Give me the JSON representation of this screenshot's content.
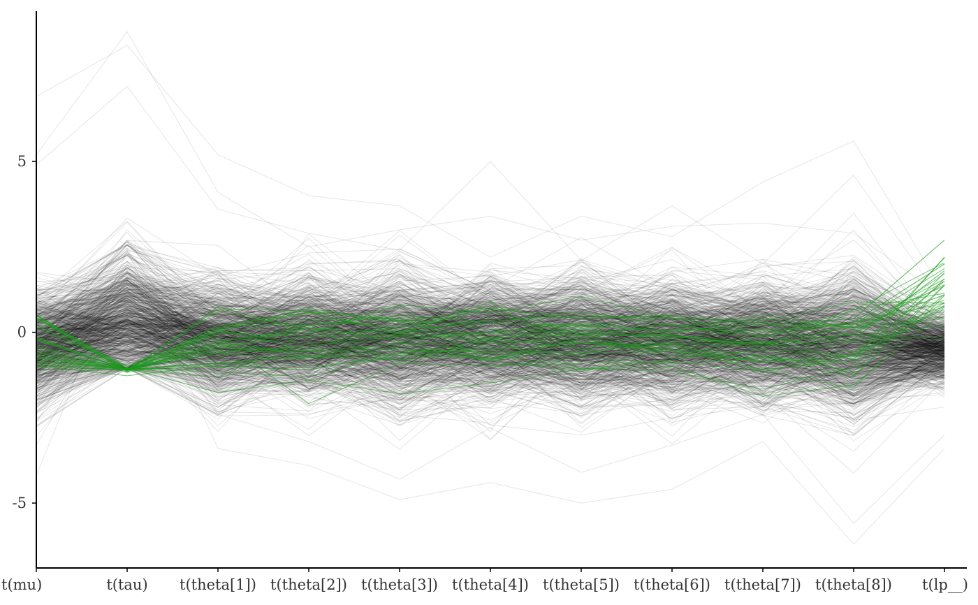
{
  "chart_data": {
    "type": "line",
    "plot_kind": "parallel-coordinates",
    "title": "",
    "xlabel": "",
    "ylabel": "",
    "categories": [
      "t(mu)",
      "t(tau)",
      "t(theta[1])",
      "t(theta[2])",
      "t(theta[3])",
      "t(theta[4])",
      "t(theta[5])",
      "t(theta[6])",
      "t(theta[7])",
      "t(theta[8])",
      "t(lp__)"
    ],
    "y_ticks": [
      {
        "value": 5,
        "label": "5"
      },
      {
        "value": 0,
        "label": "0"
      },
      {
        "value": -5,
        "label": "-5"
      }
    ],
    "ylim": [
      -6.9,
      9.4
    ],
    "grid": false,
    "legend": "none",
    "line_opacity_normal": 0.1,
    "colors": {
      "normal": "#000000",
      "divergent": "#1a9e1a"
    },
    "series_normal_example": [
      {
        "values": [
          5.2,
          8.8,
          4.1,
          2.5,
          3.0,
          3.4,
          2.7,
          3.1,
          3.2,
          2.9,
          1.0
        ]
      },
      {
        "values": [
          6.9,
          8.4,
          5.2,
          4.0,
          3.7,
          2.2,
          3.4,
          2.8,
          4.4,
          5.6,
          1.1
        ]
      },
      {
        "values": [
          4.9,
          7.2,
          3.6,
          2.9,
          2.4,
          5.0,
          2.1,
          3.7,
          2.0,
          4.6,
          0.8
        ]
      },
      {
        "values": [
          -4.2,
          2.4,
          -3.4,
          -3.9,
          -4.9,
          -4.4,
          -5.0,
          -4.6,
          -3.2,
          -6.2,
          -3.4
        ]
      },
      {
        "values": [
          -3.3,
          1.2,
          -2.4,
          -3.2,
          -4.3,
          -2.8,
          -4.1,
          -3.3,
          -2.4,
          -5.6,
          -3.0
        ]
      },
      {
        "values": [
          0.1,
          0.3,
          0.2,
          0.4,
          -0.1,
          0.2,
          0.0,
          -0.2,
          0.1,
          -0.3,
          -0.4
        ]
      },
      {
        "values": [
          -0.6,
          0.1,
          -0.4,
          -0.2,
          0.3,
          -0.1,
          -0.3,
          0.2,
          -0.5,
          0.1,
          -0.8
        ]
      },
      {
        "values": [
          1.2,
          2.3,
          1.4,
          1.0,
          0.8,
          1.5,
          0.9,
          1.2,
          1.8,
          1.1,
          0.2
        ]
      },
      {
        "values": [
          -1.5,
          -0.5,
          -1.8,
          -1.2,
          -2.1,
          -1.4,
          -1.9,
          -1.6,
          -1.2,
          -2.4,
          -1.3
        ]
      },
      {
        "values": [
          0.5,
          1.4,
          0.8,
          0.6,
          0.3,
          0.9,
          0.4,
          0.5,
          0.7,
          0.4,
          -0.6
        ]
      }
    ],
    "series_divergent_example": [
      {
        "values": [
          -0.4,
          -1.1,
          -0.9,
          -0.7,
          -0.3,
          -0.8,
          -0.2,
          -0.5,
          -1.1,
          -0.8,
          2.2
        ]
      },
      {
        "values": [
          0.4,
          -1.0,
          -0.3,
          0.2,
          0.5,
          0.3,
          0.6,
          0.2,
          -0.1,
          0.3,
          2.0
        ]
      },
      {
        "values": [
          -1.0,
          -1.1,
          -1.0,
          -1.1,
          -0.6,
          -0.5,
          -0.3,
          -0.4,
          -0.9,
          -0.7,
          1.5
        ]
      },
      {
        "values": [
          0.2,
          -1.0,
          0.1,
          0.7,
          0.3,
          0.7,
          0.4,
          0.5,
          0.2,
          0.4,
          2.7
        ]
      },
      {
        "values": [
          -0.2,
          -1.1,
          -0.6,
          -0.4,
          -0.1,
          -0.2,
          0.1,
          -0.1,
          -0.4,
          -0.2,
          1.8
        ]
      }
    ]
  }
}
